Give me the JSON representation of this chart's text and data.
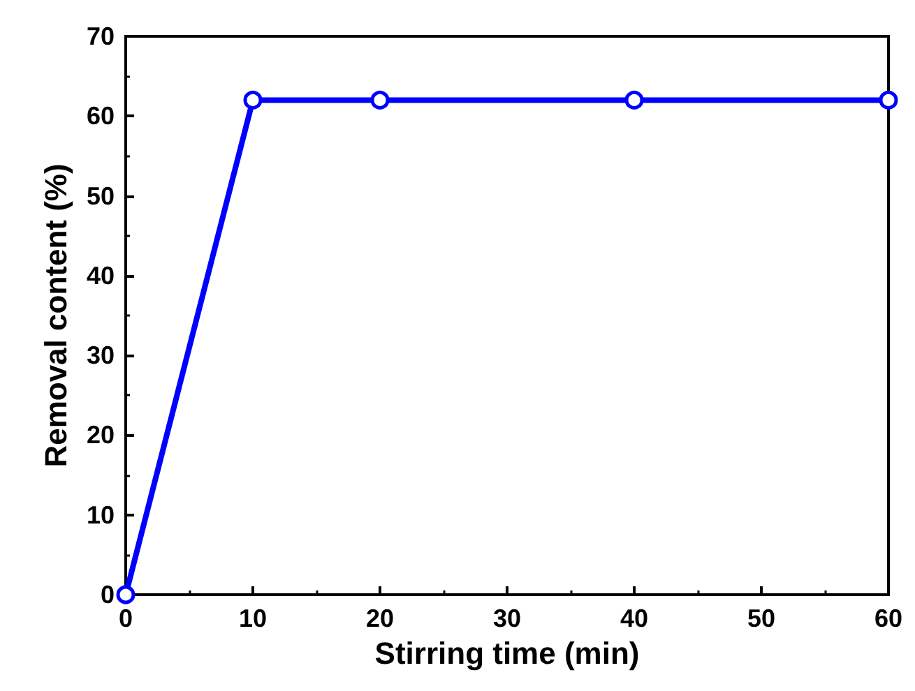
{
  "chart_data": {
    "type": "line",
    "xlabel": "Stirring time (min)",
    "ylabel": "Removal content (%)",
    "x": [
      0,
      10,
      20,
      40,
      60
    ],
    "series": [
      {
        "color": "#0000ff",
        "values": [
          0,
          62,
          62,
          62,
          62
        ]
      }
    ],
    "xlim": [
      0,
      60
    ],
    "xticks": [
      0,
      10,
      20,
      30,
      40,
      50,
      60
    ],
    "ylim": [
      0,
      70
    ],
    "yticks": [
      0,
      10,
      20,
      30,
      40,
      50,
      60,
      70
    ],
    "marker": "circle",
    "line_style": "solid"
  }
}
